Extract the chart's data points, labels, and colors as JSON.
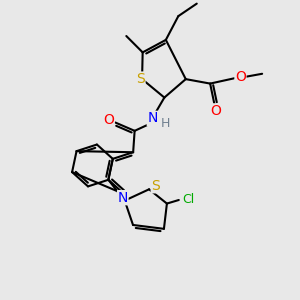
{
  "bg_color": "#e8e8e8",
  "bond_color": "#000000",
  "bond_width": 1.5,
  "atom_colors": {
    "S": "#c8a000",
    "N": "#0000ff",
    "O": "#ff0000",
    "Cl": "#00aa00",
    "H": "#708090",
    "C": "#000000"
  },
  "font_size": 9,
  "fig_width": 3.0,
  "fig_height": 3.0,
  "dpi": 100
}
